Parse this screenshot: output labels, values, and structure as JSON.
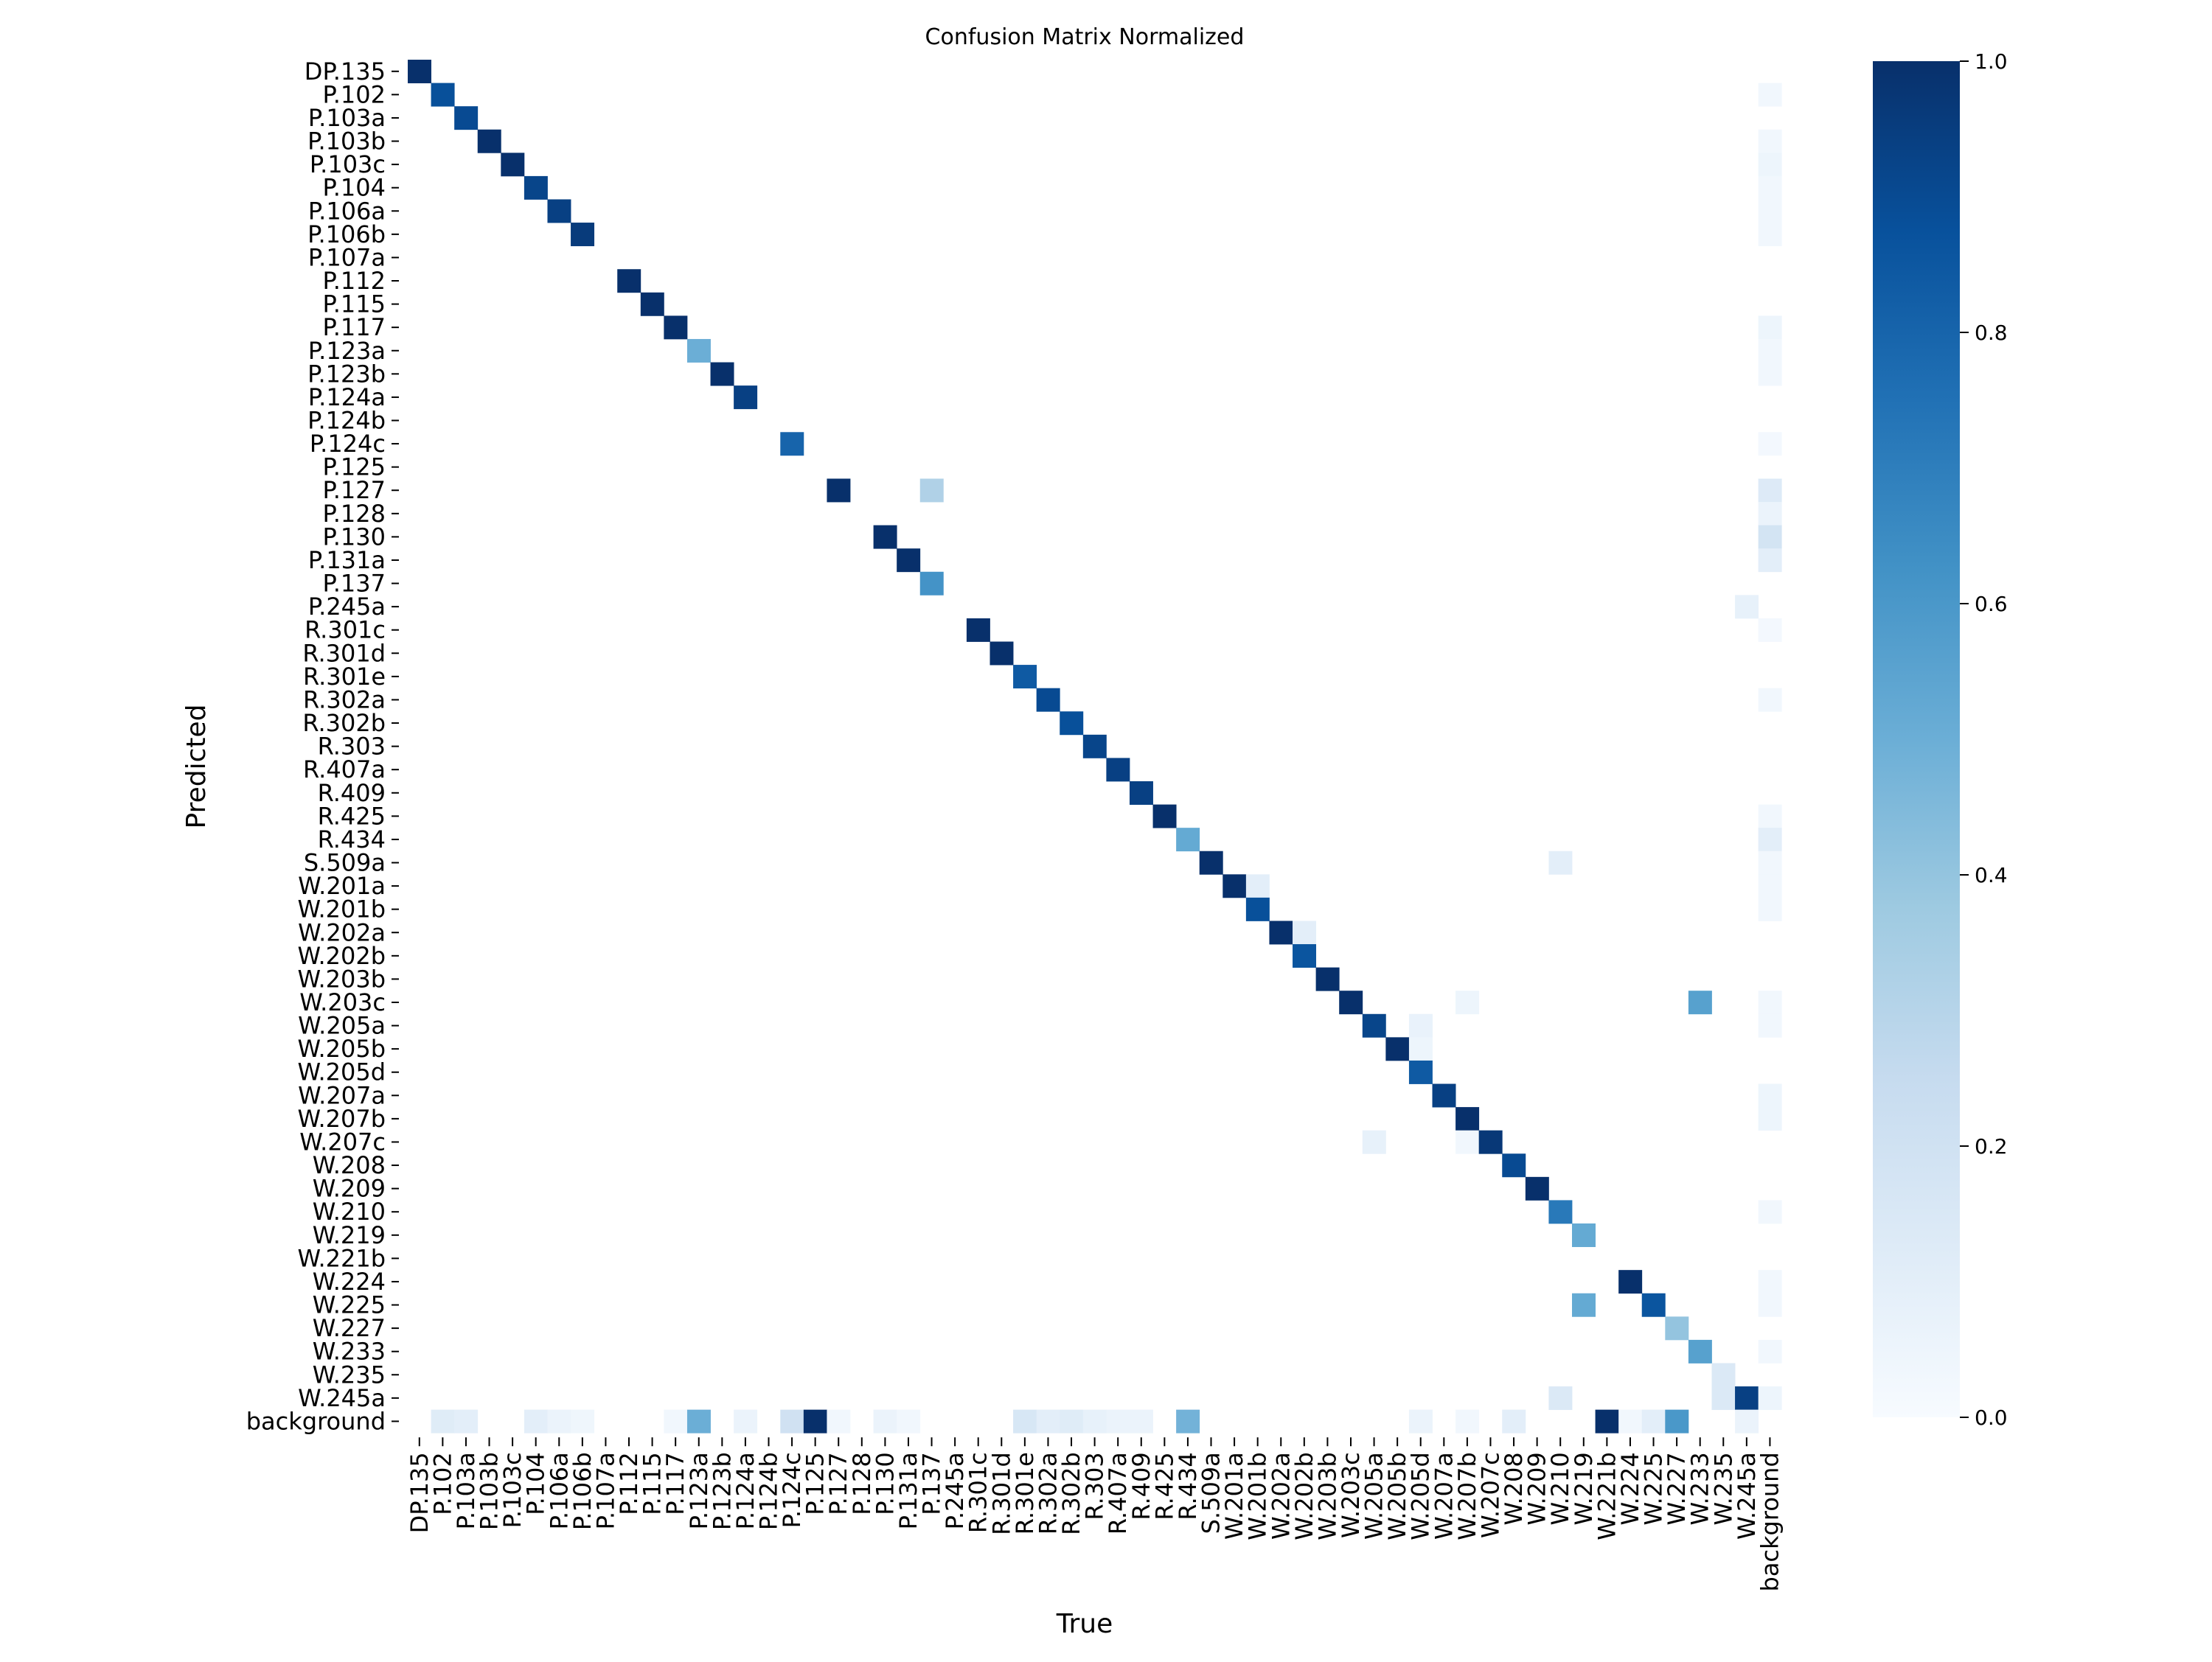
{
  "chart_data": {
    "type": "heatmap",
    "title": "Confusion Matrix Normalized",
    "xlabel": "True",
    "ylabel": "Predicted",
    "labels": [
      "DP.135",
      "P.102",
      "P.103a",
      "P.103b",
      "P.103c",
      "P.104",
      "P.106a",
      "P.106b",
      "P.107a",
      "P.112",
      "P.115",
      "P.117",
      "P.123a",
      "P.123b",
      "P.124a",
      "P.124b",
      "P.124c",
      "P.125",
      "P.127",
      "P.128",
      "P.130",
      "P.131a",
      "P.137",
      "P.245a",
      "R.301c",
      "R.301d",
      "R.301e",
      "R.302a",
      "R.302b",
      "R.303",
      "R.407a",
      "R.409",
      "R.425",
      "R.434",
      "S.509a",
      "W.201a",
      "W.201b",
      "W.202a",
      "W.202b",
      "W.203b",
      "W.203c",
      "W.205a",
      "W.205b",
      "W.205d",
      "W.207a",
      "W.207b",
      "W.207c",
      "W.208",
      "W.209",
      "W.210",
      "W.219",
      "W.221b",
      "W.224",
      "W.225",
      "W.227",
      "W.233",
      "W.235",
      "W.245a",
      "background"
    ],
    "diagonal": [
      1.0,
      0.88,
      0.9,
      1.0,
      1.0,
      0.92,
      0.94,
      0.96,
      0,
      1.0,
      1.0,
      1.0,
      0.5,
      1.0,
      0.94,
      0,
      0.8,
      0,
      1.0,
      0,
      1.0,
      1.0,
      0.62,
      0,
      1.0,
      1.0,
      0.84,
      0.9,
      0.88,
      0.92,
      0.94,
      0.94,
      1.0,
      0.52,
      1.0,
      1.0,
      0.88,
      1.0,
      0.86,
      1.0,
      1.0,
      0.92,
      1.0,
      0.84,
      0.94,
      1.0,
      0.97,
      0.9,
      1.0,
      0.72,
      0.52,
      0,
      1.0,
      0.86,
      0.4,
      0.56,
      0.14,
      0.94,
      0
    ],
    "off_diagonal": [
      {
        "true": "background",
        "pred": "P.102",
        "value": 0.03
      },
      {
        "true": "background",
        "pred": "P.103b",
        "value": 0.03
      },
      {
        "true": "background",
        "pred": "P.103c",
        "value": 0.05
      },
      {
        "true": "background",
        "pred": "P.104",
        "value": 0.03
      },
      {
        "true": "background",
        "pred": "P.106a",
        "value": 0.03
      },
      {
        "true": "background",
        "pred": "P.106b",
        "value": 0.03
      },
      {
        "true": "background",
        "pred": "P.117",
        "value": 0.05
      },
      {
        "true": "background",
        "pred": "P.123a",
        "value": 0.03
      },
      {
        "true": "background",
        "pred": "P.123b",
        "value": 0.03
      },
      {
        "true": "background",
        "pred": "P.124c",
        "value": 0.02
      },
      {
        "true": "P.137",
        "pred": "P.127",
        "value": 0.32
      },
      {
        "true": "background",
        "pred": "P.127",
        "value": 0.13
      },
      {
        "true": "background",
        "pred": "P.128",
        "value": 0.06
      },
      {
        "true": "background",
        "pred": "P.130",
        "value": 0.18
      },
      {
        "true": "background",
        "pred": "P.131a",
        "value": 0.1
      },
      {
        "true": "W.245a",
        "pred": "P.245a",
        "value": 0.08
      },
      {
        "true": "background",
        "pred": "R.301c",
        "value": 0.02
      },
      {
        "true": "background",
        "pred": "R.302a",
        "value": 0.03
      },
      {
        "true": "background",
        "pred": "R.425",
        "value": 0.03
      },
      {
        "true": "background",
        "pred": "R.434",
        "value": 0.1
      },
      {
        "true": "W.210",
        "pred": "S.509a",
        "value": 0.1
      },
      {
        "true": "background",
        "pred": "S.509a",
        "value": 0.03
      },
      {
        "true": "W.201b",
        "pred": "W.201a",
        "value": 0.1
      },
      {
        "true": "background",
        "pred": "W.201a",
        "value": 0.03
      },
      {
        "true": "background",
        "pred": "W.201b",
        "value": 0.03
      },
      {
        "true": "W.202b",
        "pred": "W.202a",
        "value": 0.1
      },
      {
        "true": "W.207b",
        "pred": "W.203c",
        "value": 0.05
      },
      {
        "true": "W.233",
        "pred": "W.203c",
        "value": 0.56
      },
      {
        "true": "background",
        "pred": "W.203c",
        "value": 0.03
      },
      {
        "true": "W.205d",
        "pred": "W.205a",
        "value": 0.07
      },
      {
        "true": "background",
        "pred": "W.205a",
        "value": 0.03
      },
      {
        "true": "W.205d",
        "pred": "W.205b",
        "value": 0.05
      },
      {
        "true": "background",
        "pred": "W.207a",
        "value": 0.05
      },
      {
        "true": "background",
        "pred": "W.207b",
        "value": 0.05
      },
      {
        "true": "W.205a",
        "pred": "W.207c",
        "value": 0.08
      },
      {
        "true": "W.207b",
        "pred": "W.207c",
        "value": 0.03
      },
      {
        "true": "background",
        "pred": "W.210",
        "value": 0.03
      },
      {
        "true": "background",
        "pred": "W.224",
        "value": 0.03
      },
      {
        "true": "W.219",
        "pred": "W.225",
        "value": 0.52
      },
      {
        "true": "background",
        "pred": "W.225",
        "value": 0.03
      },
      {
        "true": "background",
        "pred": "W.233",
        "value": 0.03
      },
      {
        "true": "W.210",
        "pred": "W.245a",
        "value": 0.14
      },
      {
        "true": "W.235",
        "pred": "W.245a",
        "value": 0.14
      },
      {
        "true": "background",
        "pred": "W.245a",
        "value": 0.05
      },
      {
        "true": "P.102",
        "pred": "background",
        "value": 0.12
      },
      {
        "true": "P.103a",
        "pred": "background",
        "value": 0.1
      },
      {
        "true": "P.104",
        "pred": "background",
        "value": 0.1
      },
      {
        "true": "P.106a",
        "pred": "background",
        "value": 0.06
      },
      {
        "true": "P.106b",
        "pred": "background",
        "value": 0.04
      },
      {
        "true": "P.117",
        "pred": "background",
        "value": 0.03
      },
      {
        "true": "P.123a",
        "pred": "background",
        "value": 0.5
      },
      {
        "true": "P.124a",
        "pred": "background",
        "value": 0.06
      },
      {
        "true": "P.124c",
        "pred": "background",
        "value": 0.2
      },
      {
        "true": "P.125",
        "pred": "background",
        "value": 1.0
      },
      {
        "true": "P.127",
        "pred": "background",
        "value": 0.03
      },
      {
        "true": "P.130",
        "pred": "background",
        "value": 0.06
      },
      {
        "true": "P.131a",
        "pred": "background",
        "value": 0.03
      },
      {
        "true": "R.301e",
        "pred": "background",
        "value": 0.16
      },
      {
        "true": "R.302a",
        "pred": "background",
        "value": 0.1
      },
      {
        "true": "R.302b",
        "pred": "background",
        "value": 0.12
      },
      {
        "true": "R.303",
        "pred": "background",
        "value": 0.08
      },
      {
        "true": "R.407a",
        "pred": "background",
        "value": 0.06
      },
      {
        "true": "R.409",
        "pred": "background",
        "value": 0.06
      },
      {
        "true": "R.434",
        "pred": "background",
        "value": 0.48
      },
      {
        "true": "W.205d",
        "pred": "background",
        "value": 0.06
      },
      {
        "true": "W.207b",
        "pred": "background",
        "value": 0.03
      },
      {
        "true": "W.208",
        "pred": "background",
        "value": 0.1
      },
      {
        "true": "W.221b",
        "pred": "background",
        "value": 1.0
      },
      {
        "true": "W.224",
        "pred": "background",
        "value": 0.03
      },
      {
        "true": "W.225",
        "pred": "background",
        "value": 0.1
      },
      {
        "true": "W.227",
        "pred": "background",
        "value": 0.6
      },
      {
        "true": "W.245a",
        "pred": "background",
        "value": 0.06
      }
    ],
    "colorbar": {
      "range": [
        0.0,
        1.0
      ],
      "ticks": [
        0.0,
        0.2,
        0.4,
        0.6,
        0.8,
        1.0
      ],
      "tick_labels": [
        "0.0",
        "0.2",
        "0.4",
        "0.6",
        "0.8",
        "1.0"
      ],
      "colormap": "Blues",
      "colors": [
        "#f7fbff",
        "#deebf7",
        "#c6dbef",
        "#9ecae1",
        "#6baed6",
        "#4292c6",
        "#2171b5",
        "#08519c",
        "#08306b"
      ]
    },
    "grid": false
  }
}
